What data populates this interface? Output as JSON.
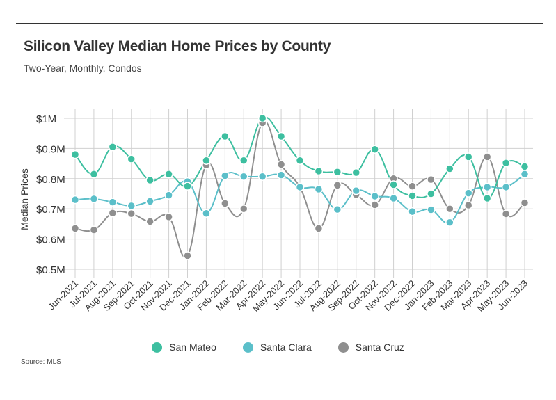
{
  "title": "Silicon Valley Median Home Prices by County",
  "subtitle": "Two-Year, Monthly, Condos",
  "source": "Source:  MLS",
  "chart_data": {
    "type": "line",
    "title": "Silicon Valley Median Home Prices by County",
    "subtitle": "Two-Year, Monthly, Condos",
    "xlabel": "",
    "ylabel": "Median Prices",
    "ylim": [
      0.5,
      1.0
    ],
    "yticks": [
      1.0,
      0.9,
      0.8,
      0.7,
      0.6,
      0.5
    ],
    "ytick_labels": [
      "$1M",
      "$0.9M",
      "$0.8M",
      "$0.7M",
      "$0.6M",
      "$0.5M"
    ],
    "grid": true,
    "legend_position": "bottom",
    "categories": [
      "Jun-2021",
      "Jul-2021",
      "Aug-2021",
      "Sep-2021",
      "Oct-2021",
      "Nov-2021",
      "Dec-2021",
      "Jan-2022",
      "Feb-2022",
      "Mar-2022",
      "Apr-2022",
      "May-2022",
      "Jun-2022",
      "Jul-2022",
      "Aug-2022",
      "Sep-2022",
      "Oct-2022",
      "Nov-2022",
      "Dec-2022",
      "Jan-2023",
      "Feb-2023",
      "Mar-2023",
      "Apr-2023",
      "May-2023",
      "Jun-2023"
    ],
    "series": [
      {
        "name": "San Mateo",
        "color": "#3dbfa0",
        "values": [
          0.88,
          0.815,
          0.905,
          0.865,
          0.795,
          0.815,
          0.775,
          0.86,
          0.94,
          0.86,
          1.0,
          0.94,
          0.86,
          0.825,
          0.822,
          0.82,
          0.897,
          0.78,
          0.743,
          0.75,
          0.833,
          0.872,
          0.735,
          0.852,
          0.84
        ]
      },
      {
        "name": "Santa Clara",
        "color": "#5bbfc9",
        "values": [
          0.73,
          0.733,
          0.722,
          0.71,
          0.725,
          0.745,
          0.79,
          0.685,
          0.81,
          0.807,
          0.807,
          0.812,
          0.772,
          0.765,
          0.698,
          0.76,
          0.742,
          0.735,
          0.691,
          0.697,
          0.655,
          0.752,
          0.772,
          0.772,
          0.815
        ]
      },
      {
        "name": "Santa Cruz",
        "color": "#8f8f8f",
        "values": [
          0.635,
          0.63,
          0.686,
          0.684,
          0.658,
          0.673,
          0.545,
          0.845,
          0.718,
          0.7,
          0.985,
          0.847,
          0.772,
          0.635,
          0.778,
          0.747,
          0.713,
          0.8,
          0.775,
          0.797,
          0.7,
          0.712,
          0.872,
          0.683,
          0.72
        ]
      }
    ]
  }
}
